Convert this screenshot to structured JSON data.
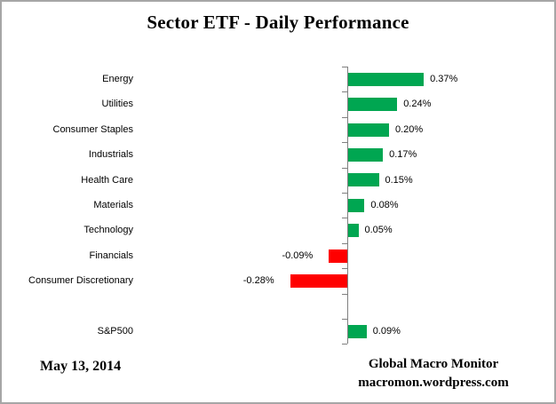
{
  "title": "Sector ETF - Daily Performance",
  "footer": {
    "date": "May 13, 2014",
    "source_name": "Global Macro Monitor",
    "source_url": "macromon.wordpress.com"
  },
  "colors": {
    "positive_bar": "#00A651",
    "negative_bar": "#FF0000",
    "axis": "#808080",
    "frame_border": "#A6A6A6",
    "background": "#FFFFFF",
    "text": "#000000"
  },
  "chart_data": {
    "type": "bar",
    "orientation": "horizontal",
    "title": "Sector ETF - Daily Performance",
    "value_unit": "percent",
    "categories": [
      "Energy",
      "Utilities",
      "Consumer Staples",
      "Industrials",
      "Health Care",
      "Materials",
      "Technology",
      "Financials",
      "Consumer Discretionary",
      "S&P500"
    ],
    "values": [
      0.37,
      0.24,
      0.2,
      0.17,
      0.15,
      0.08,
      0.05,
      -0.09,
      -0.28,
      0.09
    ],
    "labels": [
      "0.37%",
      "0.24%",
      "0.20%",
      "0.17%",
      "0.15%",
      "0.08%",
      "0.05%",
      "-0.09%",
      "-0.28%",
      "0.09%"
    ],
    "series_name": "Daily Performance",
    "xlim": [
      -0.45,
      0.55
    ],
    "grid": false,
    "value_axis_labels_visible": false,
    "layout": {
      "separator_gap_before": "S&P500",
      "bar_label_position": "outside-end",
      "legend": "none"
    }
  }
}
